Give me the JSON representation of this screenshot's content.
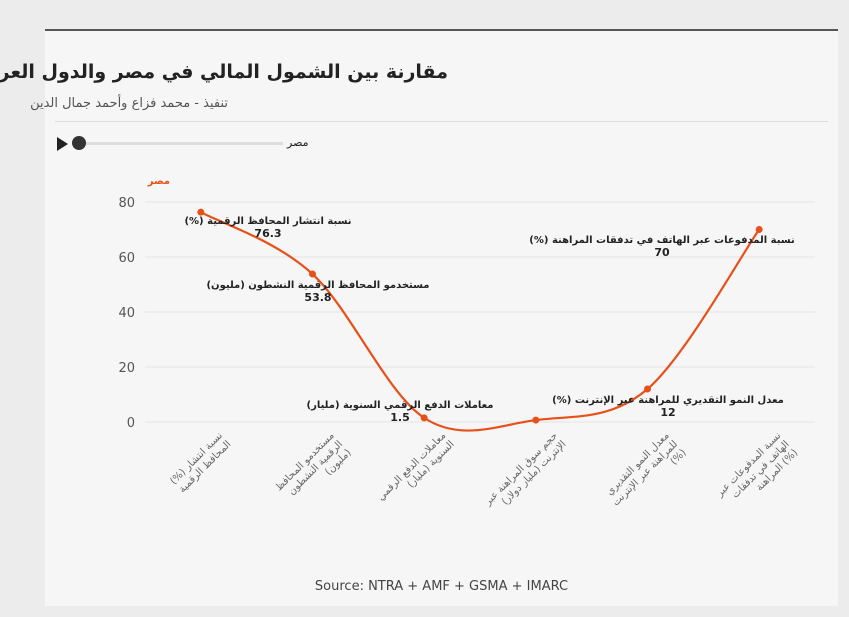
{
  "header": {
    "title": "مقارنة بين الشمول المالي في مصر والدول العربية",
    "subtitle": "تنفيذ - محمد فزاع وأحمد جمال الدين"
  },
  "slider": {
    "label": "مصر",
    "position": 0
  },
  "source": "Source: NTRA + AMF + GSMA + IMARC",
  "chart_data": {
    "type": "line",
    "series": [
      {
        "name": "مصر",
        "color": "#e8501a",
        "values": [
          76.3,
          53.8,
          1.5,
          0.7,
          12,
          70
        ]
      }
    ],
    "categories": [
      "(%) نسبة انتشار المحافظ الرقمية",
      "مستخدمو المحافظ الرقمية النشطون (مليون)",
      "معاملات الدفع الرقمي السنوية (مليار)",
      "حجم سوق المراهنة عبر الإنترنت (مليار دولار)",
      "معدل النمو التقديري للمراهنة عبر الإنترنت (%)",
      "نسبة المدفوعات عبر الهاتف في تدفقات المراهنة (%)"
    ],
    "annotations": [
      {
        "label": "(%) نسبة انتشار المحافظ الرقمية",
        "value": "76.3"
      },
      {
        "label": "مستخدمو المحافظ الرقمية النشطون (مليون)",
        "value": "53.8"
      },
      {
        "label": "معاملات الدفع الرقمي السنوية (مليار)",
        "value": "1.5"
      },
      null,
      {
        "label": "(%) معدل النمو التقديري للمراهنة عبر الإنترنت",
        "value": "12"
      },
      {
        "label": "(%) نسبة المدفوعات عبر الهاتف في تدفقات المراهنة",
        "value": "70"
      }
    ],
    "yticks": [
      0,
      20,
      40,
      60,
      80
    ],
    "ylim": [
      0,
      80
    ],
    "grid": true,
    "smooth": true
  }
}
